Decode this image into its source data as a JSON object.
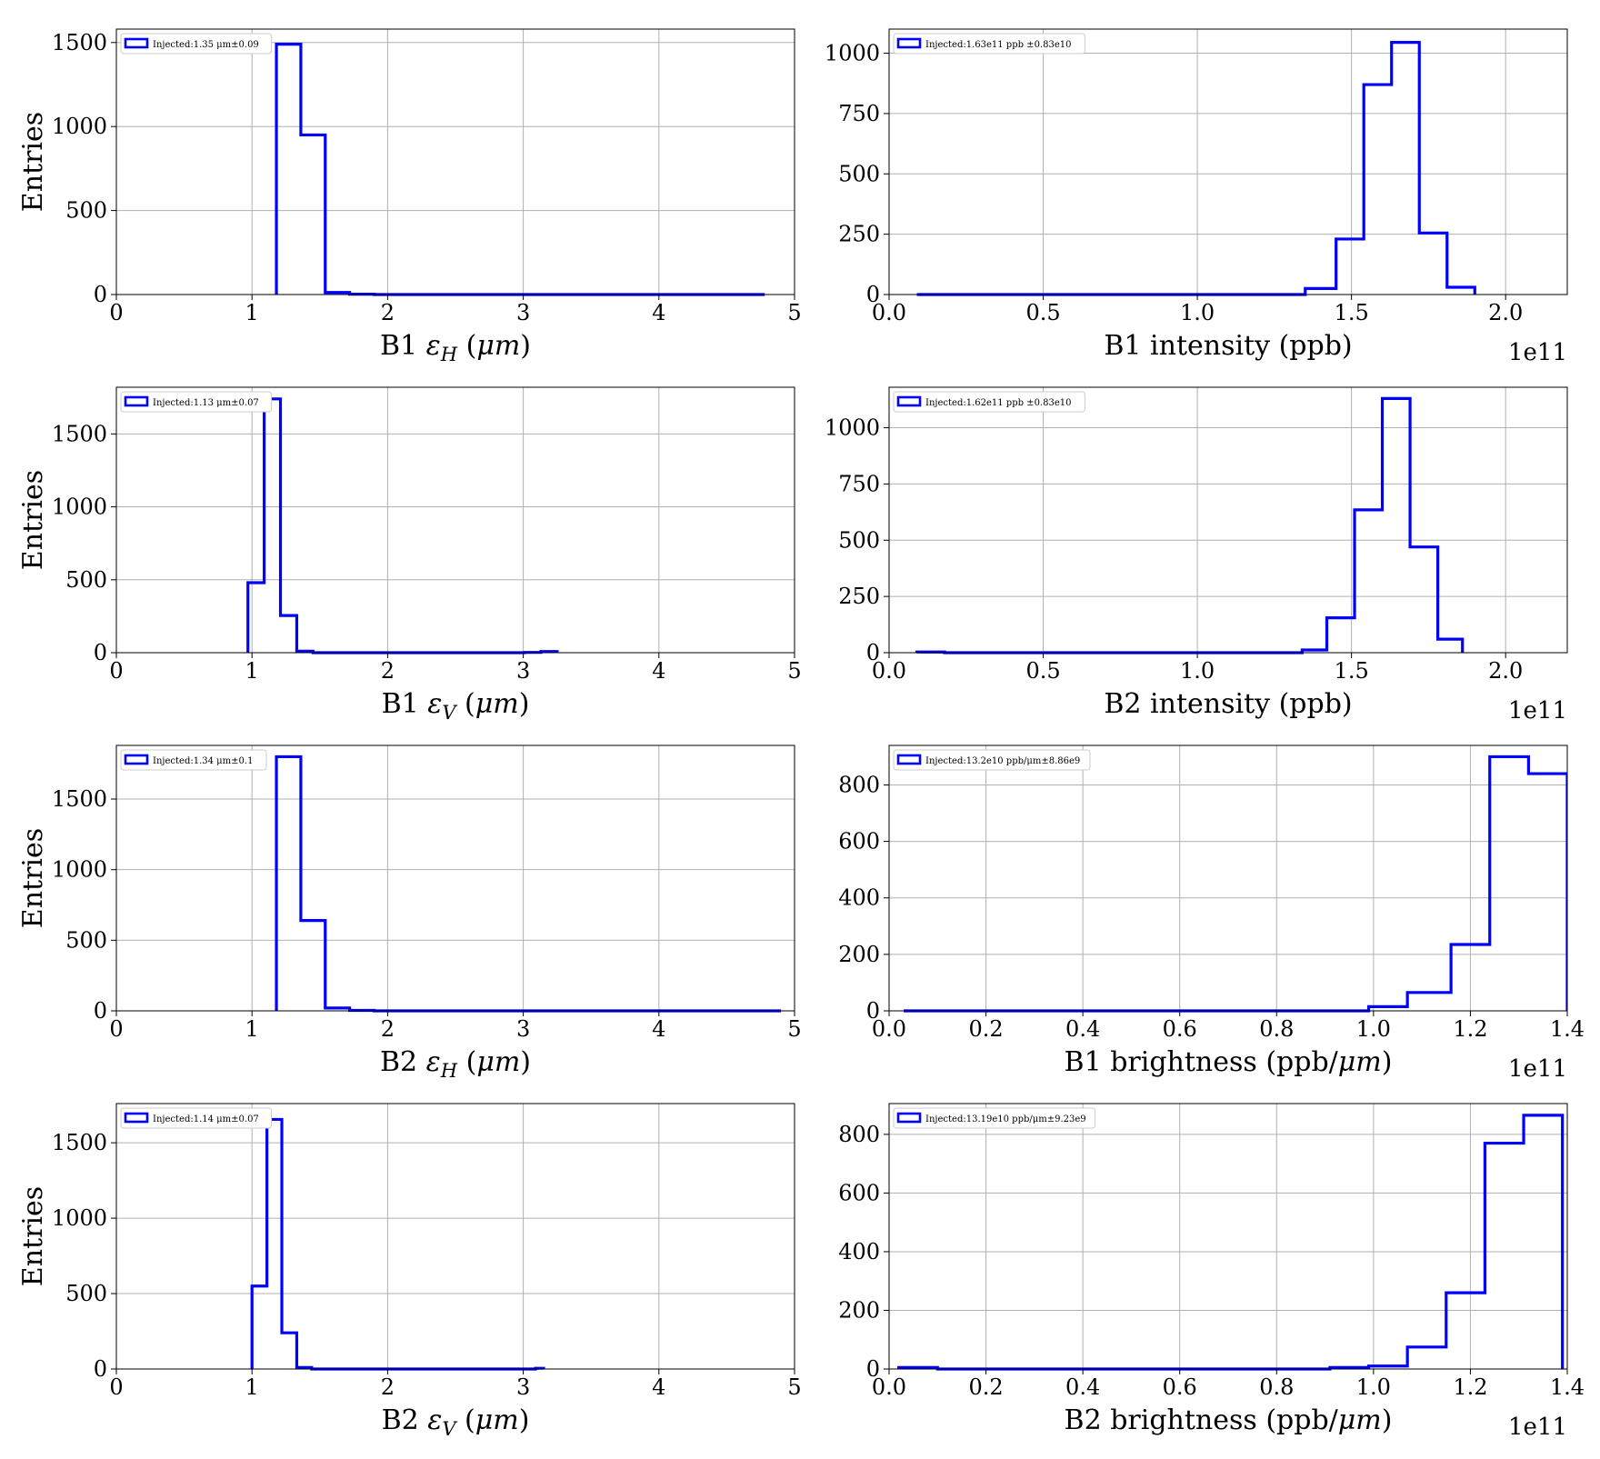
{
  "chart_data": [
    {
      "type": "histogram",
      "xlabel_parts": [
        "B1 ",
        "ε",
        "H",
        " (",
        "μm",
        ")"
      ],
      "ylabel": "Entries",
      "legend": "Injected:1.35 μm±0.09",
      "xlim": [
        0,
        5
      ],
      "ylim": [
        0,
        1580
      ],
      "xticks": [
        0,
        1,
        2,
        3,
        4,
        5
      ],
      "xtick_labels": [
        "0",
        "1",
        "2",
        "3",
        "4",
        "5"
      ],
      "yticks": [
        0,
        500,
        1000,
        1500
      ],
      "ytick_labels": [
        "0",
        "500",
        "1000",
        "1500"
      ],
      "offset_label": "",
      "grid": true,
      "legend_position": "top-left",
      "color": "#0000ff",
      "bins": [
        1.18,
        1.36,
        1.54,
        1.72,
        1.9,
        2.08,
        2.26,
        2.44,
        2.62,
        2.8,
        2.98,
        3.16,
        3.34,
        3.52,
        3.7,
        3.88,
        4.06,
        4.24,
        4.42,
        4.6,
        4.78
      ],
      "values": [
        1490,
        950,
        12,
        2,
        0,
        0,
        0,
        0,
        0,
        0,
        0,
        0,
        0,
        0,
        0,
        0,
        0,
        0,
        0,
        0
      ]
    },
    {
      "type": "histogram",
      "xlabel_parts": [
        "B1 intensity (ppb)"
      ],
      "ylabel": "",
      "legend": "Injected:1.63e11 ppb ±0.83e10",
      "xlim": [
        0,
        2.2
      ],
      "ylim": [
        0,
        1100
      ],
      "xticks": [
        0,
        0.5,
        1.0,
        1.5,
        2.0
      ],
      "xtick_labels": [
        "0.0",
        "0.5",
        "1.0",
        "1.5",
        "2.0"
      ],
      "yticks": [
        0,
        250,
        500,
        750,
        1000
      ],
      "ytick_labels": [
        "0",
        "250",
        "500",
        "750",
        "1000"
      ],
      "offset_label": "1e11",
      "grid": true,
      "legend_position": "top-left",
      "color": "#0000ff",
      "bins": [
        0.09,
        0.18,
        0.27,
        0.36,
        0.45,
        0.54,
        0.63,
        0.72,
        0.81,
        0.9,
        0.99,
        1.08,
        1.17,
        1.26,
        1.35,
        1.45,
        1.54,
        1.63,
        1.72,
        1.81,
        1.9
      ],
      "values": [
        0,
        0,
        0,
        0,
        0,
        0,
        0,
        0,
        0,
        0,
        0,
        0,
        0,
        0,
        25,
        230,
        870,
        1045,
        255,
        30
      ]
    },
    {
      "type": "histogram",
      "xlabel_parts": [
        "B1 ",
        "ε",
        "V",
        " (",
        "μm",
        ")"
      ],
      "ylabel": "Entries",
      "legend": "Injected:1.13 μm±0.07",
      "xlim": [
        0,
        5
      ],
      "ylim": [
        0,
        1820
      ],
      "xticks": [
        0,
        1,
        2,
        3,
        4,
        5
      ],
      "xtick_labels": [
        "0",
        "1",
        "2",
        "3",
        "4",
        "5"
      ],
      "yticks": [
        0,
        500,
        1000,
        1500
      ],
      "ytick_labels": [
        "0",
        "500",
        "1000",
        "1500"
      ],
      "offset_label": "",
      "grid": true,
      "legend_position": "top-left",
      "color": "#0000ff",
      "bins": [
        0.97,
        1.09,
        1.21,
        1.33,
        1.45,
        1.57,
        1.69,
        1.81,
        1.93,
        2.05,
        2.17,
        2.29,
        2.41,
        2.53,
        2.65,
        2.77,
        2.89,
        3.01,
        3.13,
        3.25
      ],
      "values": [
        480,
        1740,
        255,
        10,
        0,
        0,
        0,
        0,
        0,
        0,
        0,
        0,
        0,
        0,
        0,
        0,
        0,
        2,
        8
      ]
    },
    {
      "type": "histogram",
      "xlabel_parts": [
        "B2 intensity (ppb)"
      ],
      "ylabel": "",
      "legend": "Injected:1.62e11 ppb ±0.83e10",
      "xlim": [
        0,
        2.2
      ],
      "ylim": [
        0,
        1180
      ],
      "xticks": [
        0,
        0.5,
        1.0,
        1.5,
        2.0
      ],
      "xtick_labels": [
        "0.0",
        "0.5",
        "1.0",
        "1.5",
        "2.0"
      ],
      "yticks": [
        0,
        250,
        500,
        750,
        1000
      ],
      "ytick_labels": [
        "0",
        "250",
        "500",
        "750",
        "1000"
      ],
      "offset_label": "1e11",
      "grid": true,
      "legend_position": "top-left",
      "color": "#0000ff",
      "bins": [
        0.09,
        0.18,
        0.27,
        0.36,
        0.45,
        0.54,
        0.63,
        0.72,
        0.81,
        0.9,
        0.99,
        1.08,
        1.17,
        1.26,
        1.34,
        1.42,
        1.51,
        1.6,
        1.69,
        1.78,
        1.86
      ],
      "values": [
        3,
        0,
        0,
        0,
        0,
        0,
        0,
        0,
        0,
        0,
        0,
        0,
        0,
        0,
        12,
        155,
        635,
        1130,
        470,
        60
      ]
    },
    {
      "type": "histogram",
      "xlabel_parts": [
        "B2 ",
        "ε",
        "H",
        " (",
        "μm",
        ")"
      ],
      "ylabel": "Entries",
      "legend": "Injected:1.34 μm±0.1",
      "xlim": [
        0,
        5
      ],
      "ylim": [
        0,
        1880
      ],
      "xticks": [
        0,
        1,
        2,
        3,
        4,
        5
      ],
      "xtick_labels": [
        "0",
        "1",
        "2",
        "3",
        "4",
        "5"
      ],
      "yticks": [
        0,
        500,
        1000,
        1500
      ],
      "ytick_labels": [
        "0",
        "500",
        "1000",
        "1500"
      ],
      "offset_label": "",
      "grid": true,
      "legend_position": "top-left",
      "color": "#0000ff",
      "bins": [
        1.18,
        1.36,
        1.54,
        1.72,
        1.9,
        2.08,
        2.26,
        2.44,
        2.62,
        2.8,
        2.98,
        3.16,
        3.34,
        3.52,
        3.7,
        3.88,
        4.06,
        4.24,
        4.42,
        4.6,
        4.78,
        4.9
      ],
      "values": [
        1800,
        640,
        20,
        3,
        0,
        0,
        0,
        0,
        0,
        0,
        0,
        0,
        0,
        0,
        0,
        0,
        0,
        0,
        0,
        0,
        0
      ]
    },
    {
      "type": "histogram",
      "xlabel_parts": [
        "B1 brightness (ppb/",
        "μm",
        ")"
      ],
      "ylabel": "",
      "legend": "Injected:13.2e10 ppb/μm±8.86e9",
      "xlim": [
        0,
        1.4
      ],
      "ylim": [
        0,
        940
      ],
      "xticks": [
        0,
        0.2,
        0.4,
        0.6,
        0.8,
        1.0,
        1.2,
        1.4
      ],
      "xtick_labels": [
        "0.0",
        "0.2",
        "0.4",
        "0.6",
        "0.8",
        "1.0",
        "1.2",
        "1.4"
      ],
      "yticks": [
        0,
        200,
        400,
        600,
        800
      ],
      "ytick_labels": [
        "0",
        "200",
        "400",
        "600",
        "800"
      ],
      "offset_label": "1e11",
      "grid": true,
      "legend_position": "top-left",
      "color": "#0000ff",
      "bins": [
        0.03,
        0.11,
        0.2,
        0.28,
        0.37,
        0.46,
        0.55,
        0.64,
        0.73,
        0.82,
        0.91,
        0.99,
        1.07,
        1.16,
        1.24,
        1.32,
        1.4
      ],
      "values": [
        0,
        0,
        0,
        0,
        0,
        0,
        0,
        0,
        0,
        0,
        0,
        15,
        65,
        235,
        900,
        840
      ]
    },
    {
      "type": "histogram",
      "xlabel_parts": [
        "B2 ",
        "ε",
        "V",
        " (",
        "μm",
        ")"
      ],
      "ylabel": "Entries",
      "legend": "Injected:1.14 μm±0.07",
      "xlim": [
        0,
        5
      ],
      "ylim": [
        0,
        1760
      ],
      "xticks": [
        0,
        1,
        2,
        3,
        4,
        5
      ],
      "xtick_labels": [
        "0",
        "1",
        "2",
        "3",
        "4",
        "5"
      ],
      "yticks": [
        0,
        500,
        1000,
        1500
      ],
      "ytick_labels": [
        "0",
        "500",
        "1000",
        "1500"
      ],
      "offset_label": "",
      "grid": true,
      "legend_position": "top-left",
      "color": "#0000ff",
      "bins": [
        1.0,
        1.11,
        1.22,
        1.33,
        1.44,
        1.55,
        1.66,
        1.77,
        1.88,
        1.99,
        2.1,
        2.21,
        2.32,
        2.43,
        2.54,
        2.65,
        2.76,
        2.87,
        2.98,
        3.09,
        3.15
      ],
      "values": [
        550,
        1655,
        240,
        10,
        0,
        0,
        0,
        0,
        0,
        0,
        0,
        0,
        0,
        0,
        0,
        0,
        0,
        0,
        0,
        5
      ]
    },
    {
      "type": "histogram",
      "xlabel_parts": [
        "B2 brightness (ppb/",
        "μm",
        ")"
      ],
      "ylabel": "",
      "legend": "Injected:13.19e10 ppb/μm±9.23e9",
      "xlim": [
        0,
        1.4
      ],
      "ylim": [
        0,
        905
      ],
      "xticks": [
        0,
        0.2,
        0.4,
        0.6,
        0.8,
        1.0,
        1.2,
        1.4
      ],
      "xtick_labels": [
        "0.0",
        "0.2",
        "0.4",
        "0.6",
        "0.8",
        "1.0",
        "1.2",
        "1.4"
      ],
      "yticks": [
        0,
        200,
        400,
        600,
        800
      ],
      "ytick_labels": [
        "0",
        "200",
        "400",
        "600",
        "800"
      ],
      "offset_label": "1e11",
      "grid": true,
      "legend_position": "top-left",
      "color": "#0000ff",
      "bins": [
        0.02,
        0.1,
        0.18,
        0.26,
        0.34,
        0.42,
        0.5,
        0.58,
        0.66,
        0.74,
        0.82,
        0.91,
        0.99,
        1.07,
        1.15,
        1.23,
        1.31,
        1.39
      ],
      "values": [
        5,
        0,
        0,
        0,
        0,
        0,
        0,
        0,
        0,
        0,
        0,
        5,
        10,
        75,
        260,
        770,
        865
      ]
    }
  ]
}
